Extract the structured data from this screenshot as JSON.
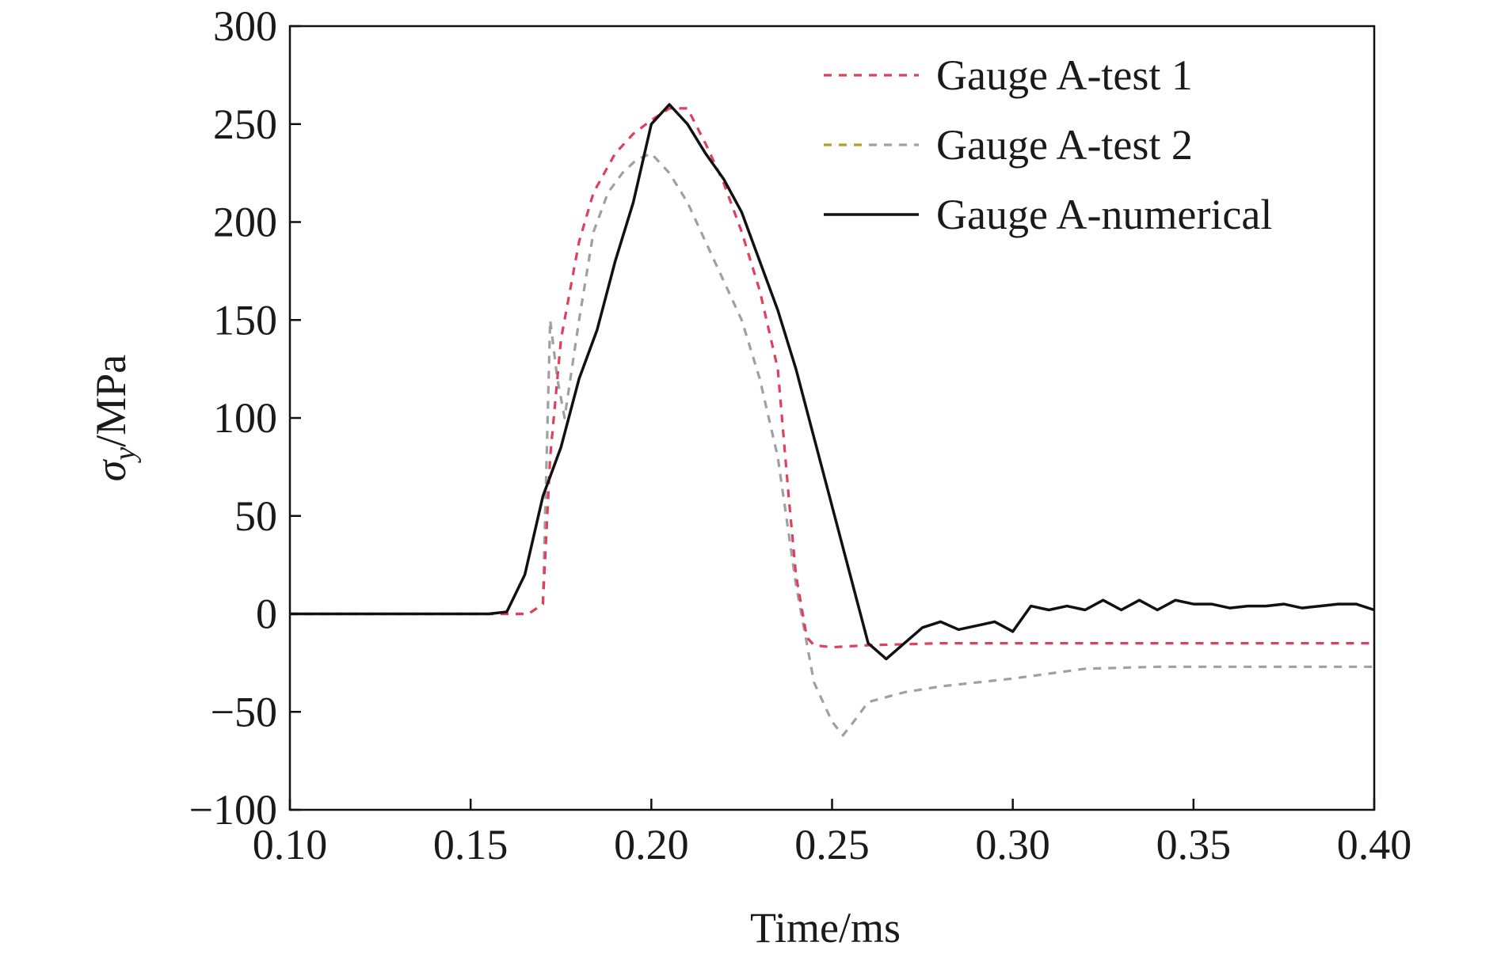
{
  "chart_data": {
    "type": "line",
    "xlabel": "Time/ms",
    "ylabel_symbol": "σ",
    "ylabel_subscript": "y",
    "ylabel_unit": "/MPa",
    "xlim": [
      0.1,
      0.4
    ],
    "ylim": [
      -100,
      300
    ],
    "x_ticks": [
      "0.10",
      "0.15",
      "0.20",
      "0.25",
      "0.30",
      "0.35",
      "0.40"
    ],
    "x_tick_values": [
      0.1,
      0.15,
      0.2,
      0.25,
      0.3,
      0.35,
      0.4
    ],
    "y_ticks": [
      "300",
      "250",
      "200",
      "150",
      "100",
      "50",
      "0",
      "−50",
      "−100"
    ],
    "y_tick_values": [
      300,
      250,
      200,
      150,
      100,
      50,
      0,
      -50,
      -100
    ],
    "grid": false,
    "legend_position": "top-right",
    "series": [
      {
        "name": "Gauge A-test 1",
        "color": "#e0405a",
        "style": "dashed",
        "x": [
          0.1,
          0.16,
          0.166,
          0.17,
          0.172,
          0.175,
          0.18,
          0.184,
          0.19,
          0.195,
          0.2,
          0.205,
          0.21,
          0.215,
          0.22,
          0.225,
          0.23,
          0.235,
          0.238,
          0.24,
          0.243,
          0.245,
          0.25,
          0.26,
          0.28,
          0.3,
          0.32,
          0.34,
          0.36,
          0.38,
          0.4
        ],
        "y": [
          0,
          0,
          0,
          5,
          80,
          140,
          190,
          215,
          235,
          245,
          252,
          258,
          258,
          240,
          220,
          195,
          165,
          125,
          60,
          20,
          -12,
          -16,
          -17,
          -16,
          -15,
          -15,
          -15,
          -15,
          -15,
          -15,
          -15
        ]
      },
      {
        "name": "Gauge A-test 2",
        "color": "#a0a0a0",
        "legend_colors": [
          "#b5a020",
          "#a0a0a0"
        ],
        "style": "dashed",
        "x": [
          0.1,
          0.16,
          0.166,
          0.17,
          0.172,
          0.174,
          0.176,
          0.18,
          0.184,
          0.188,
          0.192,
          0.196,
          0.2,
          0.205,
          0.21,
          0.215,
          0.22,
          0.225,
          0.23,
          0.235,
          0.24,
          0.245,
          0.25,
          0.253,
          0.256,
          0.26,
          0.27,
          0.28,
          0.3,
          0.32,
          0.34,
          0.36,
          0.38,
          0.4
        ],
        "y": [
          0,
          0,
          0,
          5,
          150,
          120,
          100,
          150,
          195,
          215,
          225,
          232,
          235,
          225,
          210,
          190,
          170,
          150,
          120,
          80,
          15,
          -35,
          -55,
          -62,
          -55,
          -45,
          -40,
          -37,
          -33,
          -28,
          -27,
          -27,
          -27,
          -27
        ]
      },
      {
        "name": "Gauge A-numerical",
        "color": "#111111",
        "style": "solid",
        "x": [
          0.1,
          0.155,
          0.16,
          0.165,
          0.17,
          0.175,
          0.18,
          0.185,
          0.19,
          0.195,
          0.2,
          0.205,
          0.21,
          0.215,
          0.22,
          0.225,
          0.23,
          0.235,
          0.24,
          0.245,
          0.25,
          0.255,
          0.26,
          0.265,
          0.27,
          0.275,
          0.28,
          0.285,
          0.29,
          0.295,
          0.3,
          0.305,
          0.31,
          0.315,
          0.32,
          0.325,
          0.33,
          0.335,
          0.34,
          0.345,
          0.35,
          0.355,
          0.36,
          0.365,
          0.37,
          0.375,
          0.38,
          0.385,
          0.39,
          0.395,
          0.4
        ],
        "y": [
          0,
          0,
          1,
          20,
          60,
          85,
          120,
          145,
          180,
          210,
          250,
          260,
          250,
          235,
          222,
          205,
          180,
          155,
          125,
          90,
          55,
          20,
          -15,
          -23,
          -15,
          -7,
          -4,
          -8,
          -6,
          -4,
          -9,
          4,
          2,
          4,
          2,
          7,
          2,
          7,
          2,
          7,
          5,
          5,
          3,
          4,
          4,
          5,
          3,
          4,
          5,
          5,
          2
        ]
      }
    ]
  }
}
